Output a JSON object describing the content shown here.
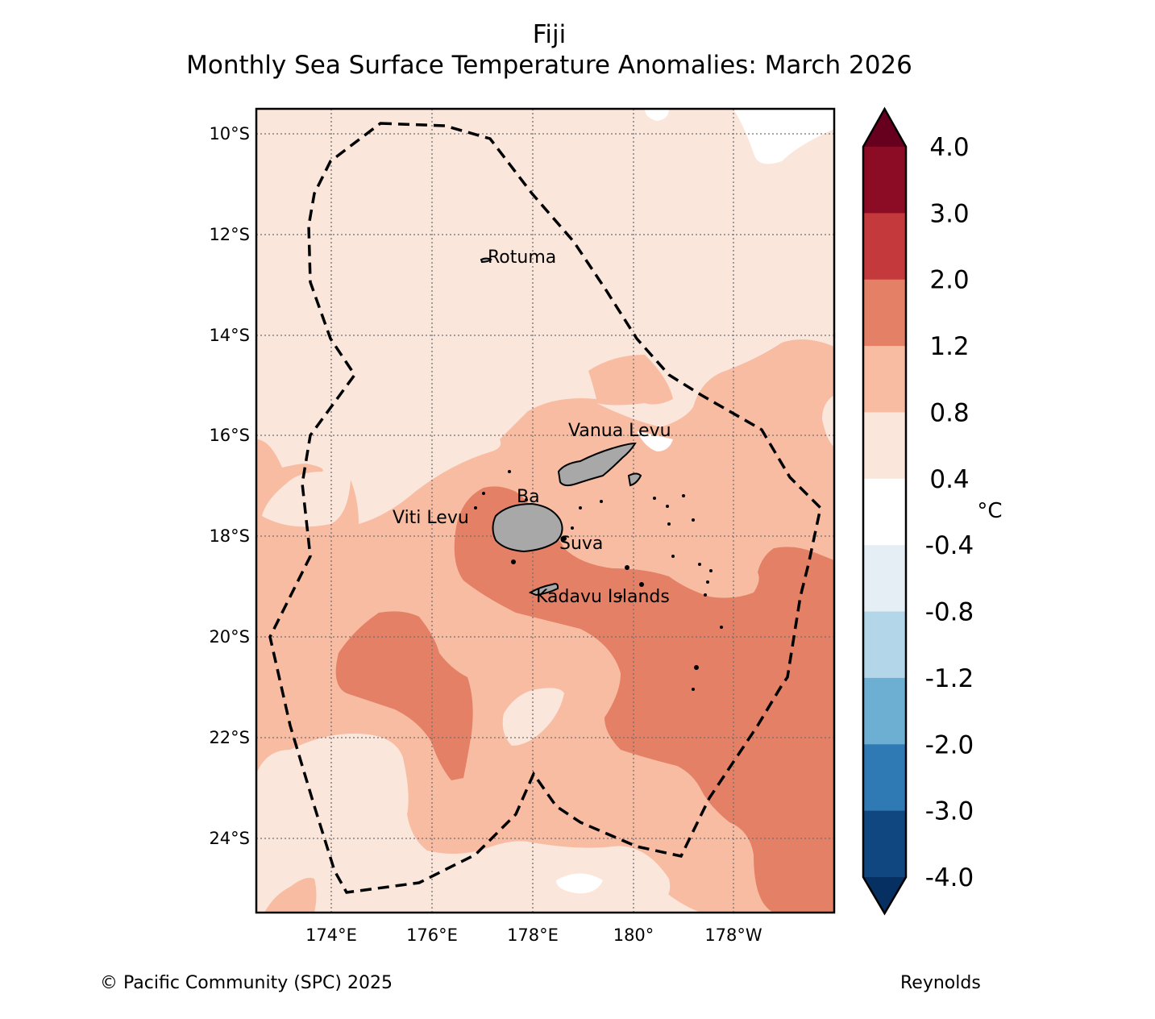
{
  "title": "Fiji",
  "subtitle": "Monthly Sea Surface Temperature Anomalies: March 2026",
  "credit": "© Pacific Community (SPC) 2025",
  "source": "Reynolds",
  "map": {
    "lat_labels": [
      "10°S",
      "12°S",
      "14°S",
      "16°S",
      "18°S",
      "20°S",
      "22°S",
      "24°S"
    ],
    "lon_labels": [
      "174°E",
      "176°E",
      "178°E",
      "180°",
      "178°W"
    ],
    "places": {
      "rotuma": "Rotuma",
      "vanua_levu": "Vanua Levu",
      "ba": "Ba",
      "viti_levu": "Viti Levu",
      "suva": "Suva",
      "kadavu": "Kadavu Islands"
    }
  },
  "colorbar": {
    "unit": "°C",
    "ticks": [
      "4.0",
      "3.0",
      "2.0",
      "1.2",
      "0.8",
      "0.4",
      "-0.4",
      "-0.8",
      "-1.2",
      "-2.0",
      "-3.0",
      "-4.0"
    ],
    "colors": [
      "#67001f",
      "#8c0b25",
      "#c4393b",
      "#e48066",
      "#f8bca2",
      "#fbe6dc",
      "#ffffff",
      "#e6eef5",
      "#b3d6e8",
      "#6dafd3",
      "#2f79b5",
      "#114781",
      "#053061"
    ]
  },
  "anomaly_colors": {
    "band_0_4_to_0_8": "#fbe6dc",
    "band_0_8_to_1_2": "#f8bca2",
    "band_1_2_to_2_0": "#e48066",
    "land": "#a8a8a8"
  }
}
